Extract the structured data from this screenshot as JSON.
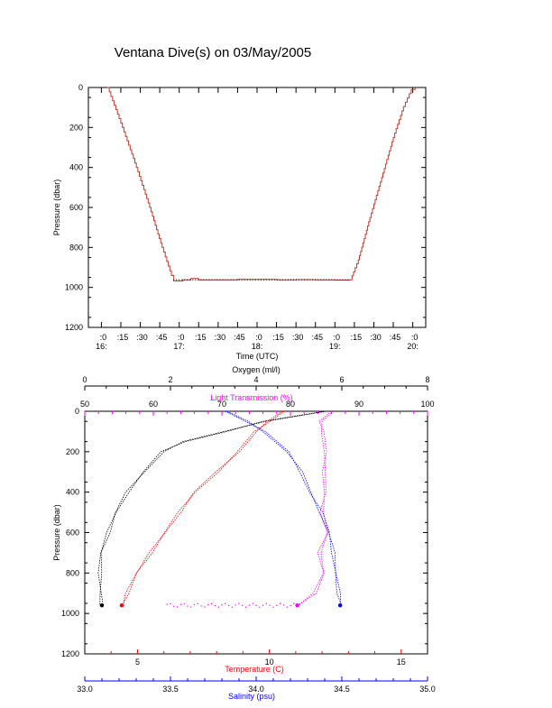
{
  "title": "Ventana Dive(s) on 03/May/2005",
  "colors": {
    "axis": "#000000",
    "pressure_trace": "#c0392b",
    "oxygen": "#000000",
    "light_transmission": "#ff00ff",
    "temperature": "#ff0000",
    "salinity": "#0000ff"
  },
  "chart_data": [
    {
      "type": "line",
      "title": "Ventana Dive(s) on 03/May/2005",
      "xlabel": "Time (UTC)",
      "ylabel": "Pressure (dbar)",
      "xlim": [
        15.8333,
        20.1667
      ],
      "ylim": [
        1200,
        0
      ],
      "x_ticks": [
        {
          "value": 16.0,
          "label": ":0",
          "sub": "16:"
        },
        {
          "value": 16.25,
          "label": ":15",
          "sub": ""
        },
        {
          "value": 16.5,
          "label": ":30",
          "sub": ""
        },
        {
          "value": 16.75,
          "label": ":45",
          "sub": ""
        },
        {
          "value": 17.0,
          "label": ":0",
          "sub": "17:"
        },
        {
          "value": 17.25,
          "label": ":15",
          "sub": ""
        },
        {
          "value": 17.5,
          "label": ":30",
          "sub": ""
        },
        {
          "value": 17.75,
          "label": ":45",
          "sub": ""
        },
        {
          "value": 18.0,
          "label": ":0",
          "sub": "18:"
        },
        {
          "value": 18.25,
          "label": ":15",
          "sub": ""
        },
        {
          "value": 18.5,
          "label": ":30",
          "sub": ""
        },
        {
          "value": 18.75,
          "label": ":45",
          "sub": ""
        },
        {
          "value": 19.0,
          "label": ":0",
          "sub": "19:"
        },
        {
          "value": 19.25,
          "label": ":15",
          "sub": ""
        },
        {
          "value": 19.5,
          "label": ":30",
          "sub": ""
        },
        {
          "value": 19.75,
          "label": ":45",
          "sub": ""
        },
        {
          "value": 20.0,
          "label": ":0",
          "sub": "20:"
        }
      ],
      "y_ticks": [
        0,
        200,
        400,
        600,
        800,
        1000,
        1200
      ],
      "series": [
        {
          "x": [
            16.08,
            16.27,
            16.45,
            16.62,
            16.78,
            16.9,
            16.93,
            17.05,
            17.15,
            17.25,
            17.5,
            17.75,
            18.0,
            18.25,
            18.5,
            18.75,
            19.0,
            19.2,
            19.3,
            19.45,
            19.6,
            19.75,
            19.88,
            19.98,
            20.03
          ],
          "y": [
            0,
            200,
            400,
            600,
            800,
            940,
            968,
            962,
            955,
            962,
            962,
            960,
            960,
            962,
            961,
            962,
            963,
            962,
            862,
            650,
            450,
            250,
            95,
            10,
            0
          ]
        }
      ]
    },
    {
      "type": "scatter",
      "ylabel": "Pressure (dbar)",
      "ylim": [
        1200,
        0
      ],
      "y_ticks": [
        0,
        200,
        400,
        600,
        800,
        1000,
        1200
      ],
      "axes": [
        {
          "key": "oxygen",
          "label": "Oxygen (ml/l)",
          "position": "top",
          "range": [
            0,
            8
          ],
          "ticks": [
            0,
            2,
            4,
            6,
            8
          ]
        },
        {
          "key": "light",
          "label": "Light Transmission (%)",
          "position": "top-inner",
          "range": [
            50,
            100
          ],
          "ticks": [
            50,
            60,
            70,
            80,
            90,
            100
          ]
        },
        {
          "key": "temperature",
          "label": "Temperature (C)",
          "position": "bottom",
          "range": [
            3,
            16
          ],
          "ticks": [
            5,
            10,
            15
          ]
        },
        {
          "key": "salinity",
          "label": "Salinity (psu)",
          "position": "bottom-outer",
          "range": [
            33.0,
            35.0
          ],
          "ticks": [
            "33.0",
            "33.5",
            "34.0",
            "34.5",
            "35.0"
          ]
        }
      ],
      "series": [
        {
          "axis": "oxygen",
          "pressure": [
            0,
            50,
            100,
            150,
            200,
            300,
            400,
            500,
            600,
            700,
            800,
            900,
            960
          ],
          "values": [
            5.6,
            4.2,
            3.3,
            2.3,
            1.8,
            1.4,
            1.0,
            0.7,
            0.55,
            0.4,
            0.35,
            0.35,
            0.4
          ]
        },
        {
          "axis": "light",
          "pressure": [
            0,
            50,
            100,
            200,
            300,
            400,
            500,
            600,
            700,
            800,
            900,
            960
          ],
          "values": [
            86.0,
            84.5,
            84.8,
            85.0,
            84.8,
            85.2,
            84.6,
            85.3,
            84.2,
            85.0,
            83.5,
            81.0
          ]
        },
        {
          "axis": "temperature",
          "pressure": [
            0,
            50,
            100,
            200,
            300,
            400,
            500,
            600,
            700,
            800,
            900,
            960
          ],
          "values": [
            10.5,
            10.0,
            9.5,
            8.8,
            8.0,
            7.2,
            6.6,
            6.0,
            5.5,
            5.0,
            4.6,
            4.4
          ]
        },
        {
          "axis": "salinity",
          "pressure": [
            0,
            50,
            100,
            200,
            300,
            400,
            500,
            600,
            700,
            800,
            900,
            960
          ],
          "values": [
            33.82,
            33.95,
            34.05,
            34.18,
            34.26,
            34.32,
            34.38,
            34.42,
            34.45,
            34.47,
            34.48,
            34.49
          ]
        }
      ]
    }
  ]
}
